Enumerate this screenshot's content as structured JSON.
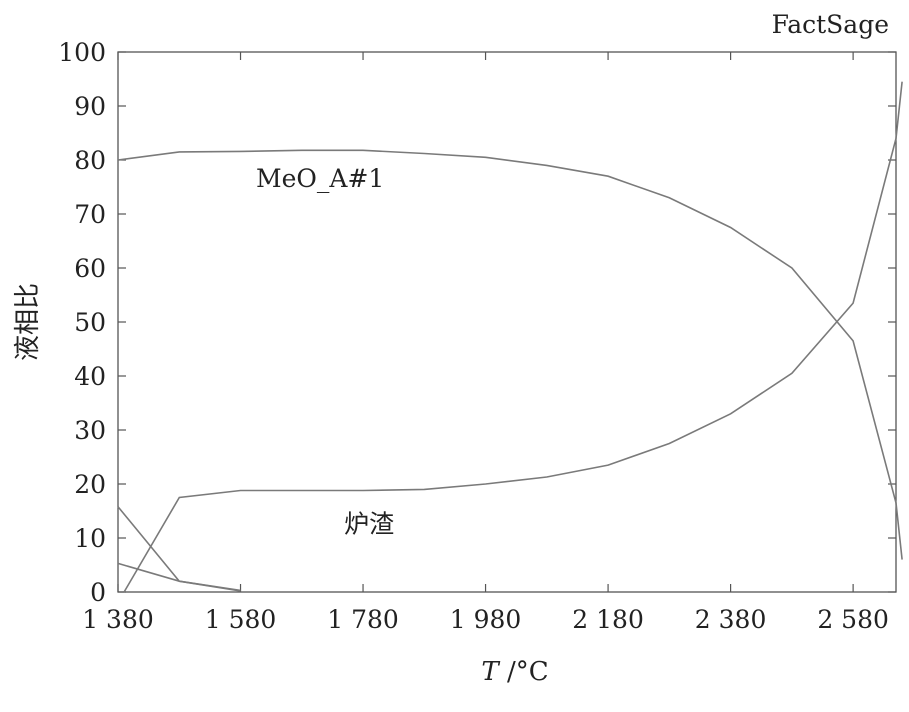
{
  "chart_data": {
    "type": "line",
    "watermark": "FactSage",
    "xlabel_italic": "T",
    "xlabel_unit": " /°C",
    "ylabel": "液相比",
    "xlim": [
      1380,
      2650
    ],
    "ylim": [
      0,
      100
    ],
    "xticks": [
      {
        "value": 1380,
        "label": "1 380"
      },
      {
        "value": 1580,
        "label": "1 580"
      },
      {
        "value": 1780,
        "label": "1 780"
      },
      {
        "value": 1980,
        "label": "1 980"
      },
      {
        "value": 2180,
        "label": "2 180"
      },
      {
        "value": 2380,
        "label": "2 380"
      },
      {
        "value": 2580,
        "label": "2 580"
      }
    ],
    "yticks": [
      {
        "value": 0,
        "label": "0"
      },
      {
        "value": 10,
        "label": "10"
      },
      {
        "value": 20,
        "label": "20"
      },
      {
        "value": 30,
        "label": "30"
      },
      {
        "value": 40,
        "label": "40"
      },
      {
        "value": 50,
        "label": "50"
      },
      {
        "value": 60,
        "label": "60"
      },
      {
        "value": 70,
        "label": "70"
      },
      {
        "value": 80,
        "label": "80"
      },
      {
        "value": 90,
        "label": "90"
      },
      {
        "value": 100,
        "label": "100"
      }
    ],
    "annotations": [
      {
        "text": "MeO_A#1",
        "x": 1710,
        "y": 75
      },
      {
        "text": "炉渣",
        "x": 1790,
        "y": 11
      }
    ],
    "color": "#7a7a7a",
    "series": [
      {
        "x": [
          1380,
          1480,
          1580,
          1680,
          1780,
          1880,
          1980,
          2080,
          2180,
          2280,
          2380,
          2480,
          2580,
          2650,
          2660
        ],
        "y": [
          80.0,
          81.5,
          81.6,
          81.8,
          81.8,
          81.2,
          80.5,
          79.0,
          77.0,
          73.0,
          67.5,
          60.0,
          46.5,
          16.5,
          6.0
        ]
      },
      {
        "x": [
          1390,
          1480,
          1580,
          1680,
          1780,
          1880,
          1980,
          2080,
          2180,
          2280,
          2380,
          2480,
          2580,
          2650,
          2660
        ],
        "y": [
          0.0,
          17.5,
          18.8,
          18.8,
          18.8,
          19.0,
          20.0,
          21.3,
          23.5,
          27.5,
          33.0,
          40.5,
          53.5,
          84.0,
          94.5
        ]
      },
      {
        "x": [
          1380,
          1480,
          1580
        ],
        "y": [
          15.8,
          2.0,
          0.2
        ]
      },
      {
        "x": [
          1380,
          1480,
          1580
        ],
        "y": [
          5.3,
          2.0,
          0.3
        ]
      }
    ]
  }
}
